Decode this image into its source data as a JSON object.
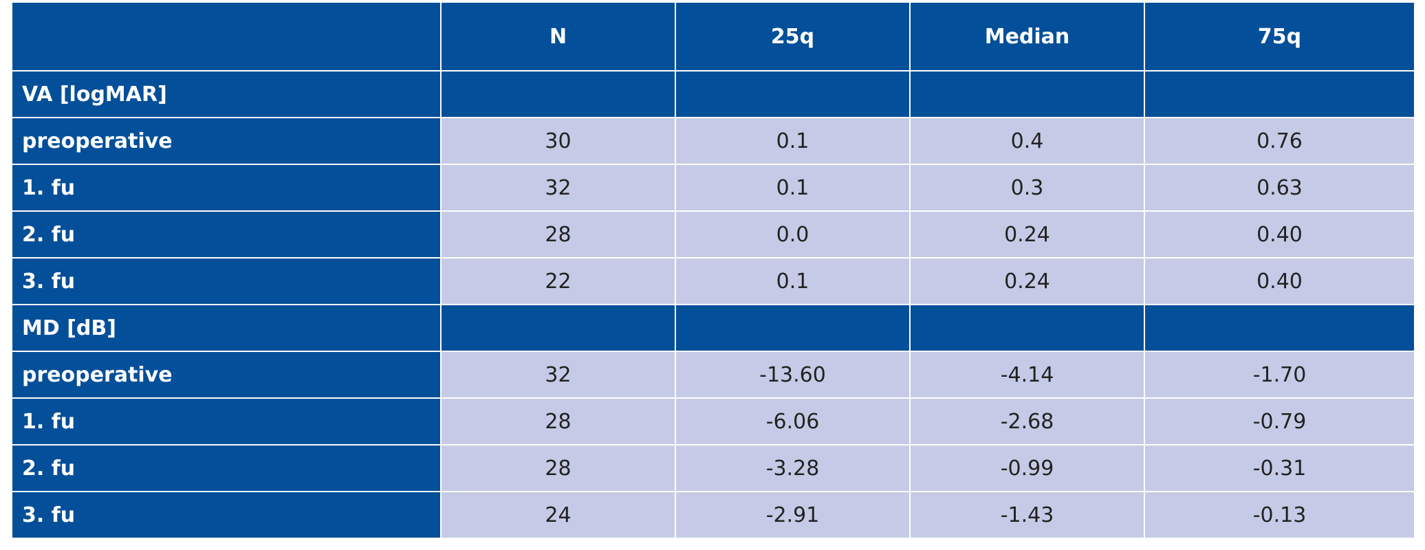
{
  "table": {
    "columns": [
      "N",
      "25q",
      "Median",
      "75q"
    ],
    "rows": [
      {
        "label": "VA [logMAR]"
      },
      {
        "label": "preoperative",
        "cells": [
          "30",
          "0.1",
          "0.4",
          "0.76"
        ]
      },
      {
        "label": "1. fu",
        "cells": [
          "32",
          "0.1",
          "0.3",
          "0.63"
        ]
      },
      {
        "label": "2. fu",
        "cells": [
          "28",
          "0.0",
          "0.24",
          "0.40"
        ]
      },
      {
        "label": "3. fu",
        "cells": [
          "22",
          "0.1",
          "0.24",
          "0.40"
        ]
      },
      {
        "label": "MD [dB]"
      },
      {
        "label": "preoperative",
        "cells": [
          "32",
          "-13.60",
          "-4.14",
          "-1.70"
        ]
      },
      {
        "label": "1. fu",
        "cells": [
          "28",
          "-6.06",
          "-2.68",
          "-0.79"
        ]
      },
      {
        "label": "2. fu",
        "cells": [
          "28",
          "-3.28",
          "-0.99",
          "-0.31"
        ]
      },
      {
        "label": "3. fu",
        "cells": [
          "24",
          "-2.91",
          "-1.43",
          "-0.13"
        ]
      }
    ]
  }
}
